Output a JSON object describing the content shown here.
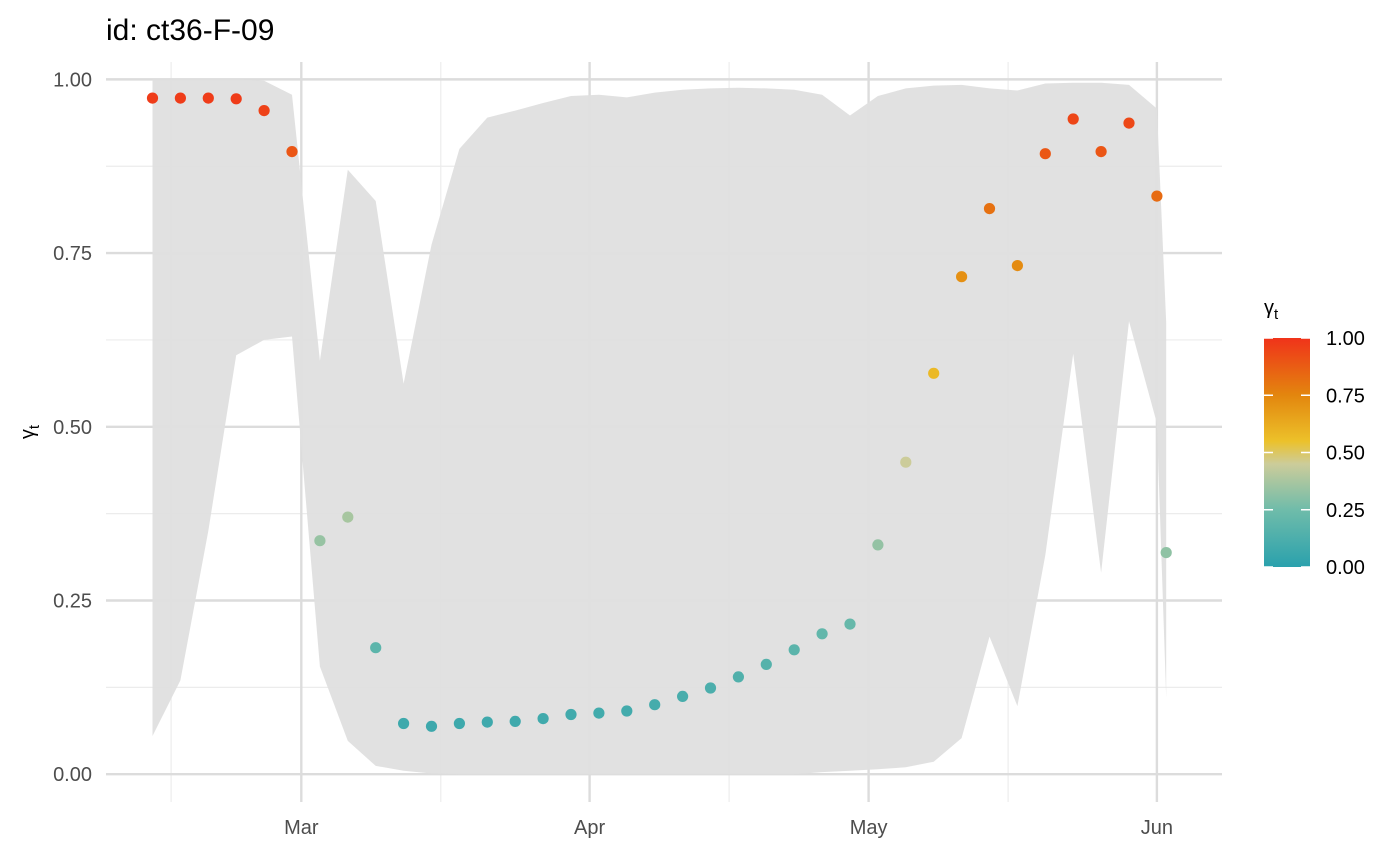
{
  "chart_data": {
    "type": "scatter",
    "title": "id: ct36-F-09",
    "ylabel_symbol": "γ",
    "ylabel_sub": "t",
    "ylim": [
      -0.04,
      1.025
    ],
    "y_ticks": [
      0.0,
      0.25,
      0.5,
      0.75,
      1.0
    ],
    "y_tick_labels": [
      "0.00",
      "0.25",
      "0.50",
      "0.75",
      "1.00"
    ],
    "x_ticks": [
      {
        "label": "Mar",
        "date": "2021-03-01"
      },
      {
        "label": "Apr",
        "date": "2021-04-01"
      },
      {
        "label": "May",
        "date": "2021-05-01"
      },
      {
        "label": "Jun",
        "date": "2021-06-01"
      }
    ],
    "x_minor_ticks": [
      "2021-02-15",
      "2021-03-16",
      "2021-04-16",
      "2021-05-16"
    ],
    "xlim": [
      "2021-02-08",
      "2021-06-08"
    ],
    "grid": true,
    "points": [
      {
        "date": "2021-02-13",
        "y": 0.973
      },
      {
        "date": "2021-02-16",
        "y": 0.973
      },
      {
        "date": "2021-02-19",
        "y": 0.973
      },
      {
        "date": "2021-02-22",
        "y": 0.972
      },
      {
        "date": "2021-02-25",
        "y": 0.955
      },
      {
        "date": "2021-02-28",
        "y": 0.896
      },
      {
        "date": "2021-03-03",
        "y": 0.336
      },
      {
        "date": "2021-03-06",
        "y": 0.37
      },
      {
        "date": "2021-03-09",
        "y": 0.182
      },
      {
        "date": "2021-03-12",
        "y": 0.073
      },
      {
        "date": "2021-03-15",
        "y": 0.069
      },
      {
        "date": "2021-03-18",
        "y": 0.073
      },
      {
        "date": "2021-03-21",
        "y": 0.075
      },
      {
        "date": "2021-03-24",
        "y": 0.076
      },
      {
        "date": "2021-03-27",
        "y": 0.08
      },
      {
        "date": "2021-03-30",
        "y": 0.086
      },
      {
        "date": "2021-04-02",
        "y": 0.088
      },
      {
        "date": "2021-04-05",
        "y": 0.091
      },
      {
        "date": "2021-04-08",
        "y": 0.1
      },
      {
        "date": "2021-04-11",
        "y": 0.112
      },
      {
        "date": "2021-04-14",
        "y": 0.124
      },
      {
        "date": "2021-04-17",
        "y": 0.14
      },
      {
        "date": "2021-04-20",
        "y": 0.158
      },
      {
        "date": "2021-04-23",
        "y": 0.179
      },
      {
        "date": "2021-04-26",
        "y": 0.202
      },
      {
        "date": "2021-04-29",
        "y": 0.216
      },
      {
        "date": "2021-05-02",
        "y": 0.33
      },
      {
        "date": "2021-05-05",
        "y": 0.449
      },
      {
        "date": "2021-05-08",
        "y": 0.577
      },
      {
        "date": "2021-05-11",
        "y": 0.716
      },
      {
        "date": "2021-05-14",
        "y": 0.814
      },
      {
        "date": "2021-05-17",
        "y": 0.732
      },
      {
        "date": "2021-05-20",
        "y": 0.893
      },
      {
        "date": "2021-05-23",
        "y": 0.943
      },
      {
        "date": "2021-05-26",
        "y": 0.896
      },
      {
        "date": "2021-05-29",
        "y": 0.937
      },
      {
        "date": "2021-06-01",
        "y": 0.832
      },
      {
        "date": "2021-06-02",
        "y": 0.319
      }
    ],
    "band": [
      {
        "date": "2021-02-13",
        "lower": 0.055,
        "upper": 1.0
      },
      {
        "date": "2021-02-16",
        "lower": 0.135,
        "upper": 1.0
      },
      {
        "date": "2021-02-19",
        "lower": 0.35,
        "upper": 1.0
      },
      {
        "date": "2021-02-22",
        "lower": 0.603,
        "upper": 1.0
      },
      {
        "date": "2021-02-25",
        "lower": 0.625,
        "upper": 0.998
      },
      {
        "date": "2021-02-28",
        "lower": 0.63,
        "upper": 0.978
      },
      {
        "date": "2021-03-03",
        "lower": 0.155,
        "upper": 0.595
      },
      {
        "date": "2021-03-06",
        "lower": 0.048,
        "upper": 0.87
      },
      {
        "date": "2021-03-09",
        "lower": 0.012,
        "upper": 0.825
      },
      {
        "date": "2021-03-12",
        "lower": 0.005,
        "upper": 0.562
      },
      {
        "date": "2021-03-15",
        "lower": 0.001,
        "upper": 0.762
      },
      {
        "date": "2021-03-18",
        "lower": 0.0,
        "upper": 0.9
      },
      {
        "date": "2021-03-21",
        "lower": 0.0,
        "upper": 0.945
      },
      {
        "date": "2021-03-24",
        "lower": 0.0,
        "upper": 0.955
      },
      {
        "date": "2021-03-27",
        "lower": 0.0,
        "upper": 0.966
      },
      {
        "date": "2021-03-30",
        "lower": 0.0,
        "upper": 0.976
      },
      {
        "date": "2021-04-02",
        "lower": 0.0,
        "upper": 0.978
      },
      {
        "date": "2021-04-05",
        "lower": 0.0,
        "upper": 0.974
      },
      {
        "date": "2021-04-08",
        "lower": 0.0,
        "upper": 0.981
      },
      {
        "date": "2021-04-11",
        "lower": 0.0,
        "upper": 0.985
      },
      {
        "date": "2021-04-14",
        "lower": 0.0,
        "upper": 0.987
      },
      {
        "date": "2021-04-17",
        "lower": 0.0,
        "upper": 0.988
      },
      {
        "date": "2021-04-20",
        "lower": 0.0,
        "upper": 0.987
      },
      {
        "date": "2021-04-23",
        "lower": 0.0,
        "upper": 0.985
      },
      {
        "date": "2021-04-26",
        "lower": 0.003,
        "upper": 0.978
      },
      {
        "date": "2021-04-29",
        "lower": 0.005,
        "upper": 0.948
      },
      {
        "date": "2021-05-02",
        "lower": 0.007,
        "upper": 0.976
      },
      {
        "date": "2021-05-05",
        "lower": 0.01,
        "upper": 0.987
      },
      {
        "date": "2021-05-08",
        "lower": 0.018,
        "upper": 0.991
      },
      {
        "date": "2021-05-11",
        "lower": 0.052,
        "upper": 0.992
      },
      {
        "date": "2021-05-14",
        "lower": 0.198,
        "upper": 0.987
      },
      {
        "date": "2021-05-17",
        "lower": 0.098,
        "upper": 0.984
      },
      {
        "date": "2021-05-20",
        "lower": 0.315,
        "upper": 0.994
      },
      {
        "date": "2021-05-23",
        "lower": 0.605,
        "upper": 0.995
      },
      {
        "date": "2021-05-26",
        "lower": 0.29,
        "upper": 0.995
      },
      {
        "date": "2021-05-29",
        "lower": 0.652,
        "upper": 0.992
      },
      {
        "date": "2021-06-01",
        "lower": 0.505,
        "upper": 0.958
      },
      {
        "date": "2021-06-02",
        "lower": 0.11,
        "upper": 0.65
      }
    ],
    "legend": {
      "title_symbol": "γ",
      "title_sub": "t",
      "placement": "right",
      "ticks": [
        1.0,
        0.75,
        0.5,
        0.25,
        0.0
      ],
      "tick_labels": [
        "1.00",
        "0.75",
        "0.50",
        "0.25",
        "0.00"
      ]
    },
    "colors": {
      "band": "#dfdfdf",
      "grid_major": "#dcdcdc",
      "grid_minor": "#ececec",
      "scale_stops": [
        {
          "v": 0.0,
          "c": "#2aa1ad"
        },
        {
          "v": 0.25,
          "c": "#6fbcaa"
        },
        {
          "v": 0.45,
          "c": "#cccc9a"
        },
        {
          "v": 0.55,
          "c": "#ecc12a"
        },
        {
          "v": 0.75,
          "c": "#e3860e"
        },
        {
          "v": 1.0,
          "c": "#f0331a"
        }
      ]
    }
  }
}
